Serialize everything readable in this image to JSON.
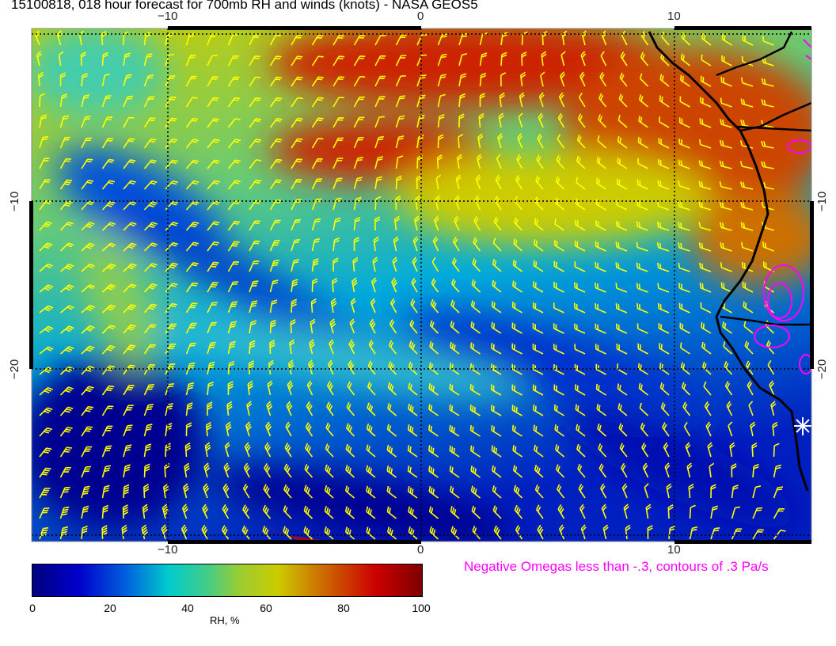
{
  "title": "15100818, 018 hour forecast for 700mb RH and winds (knots) - NASA GEOS5",
  "map": {
    "lon_ticks": [
      "−10",
      "0",
      "10"
    ],
    "lat_ticks": [
      "−10",
      "−20"
    ],
    "wind_barb_color": "#ffff00",
    "coastline_color": "#000000",
    "omega_contour_color": "#ff00ff"
  },
  "colorbar": {
    "ticks": [
      "0",
      "20",
      "40",
      "60",
      "80",
      "100"
    ],
    "label": "RH, %",
    "colors": [
      "#00007f",
      "#0000cd",
      "#00cccc",
      "#cccc00",
      "#cc0000",
      "#7f0000"
    ]
  },
  "omega_note": "Negative Omegas less than -.3, contours of .3 Pa/s"
}
